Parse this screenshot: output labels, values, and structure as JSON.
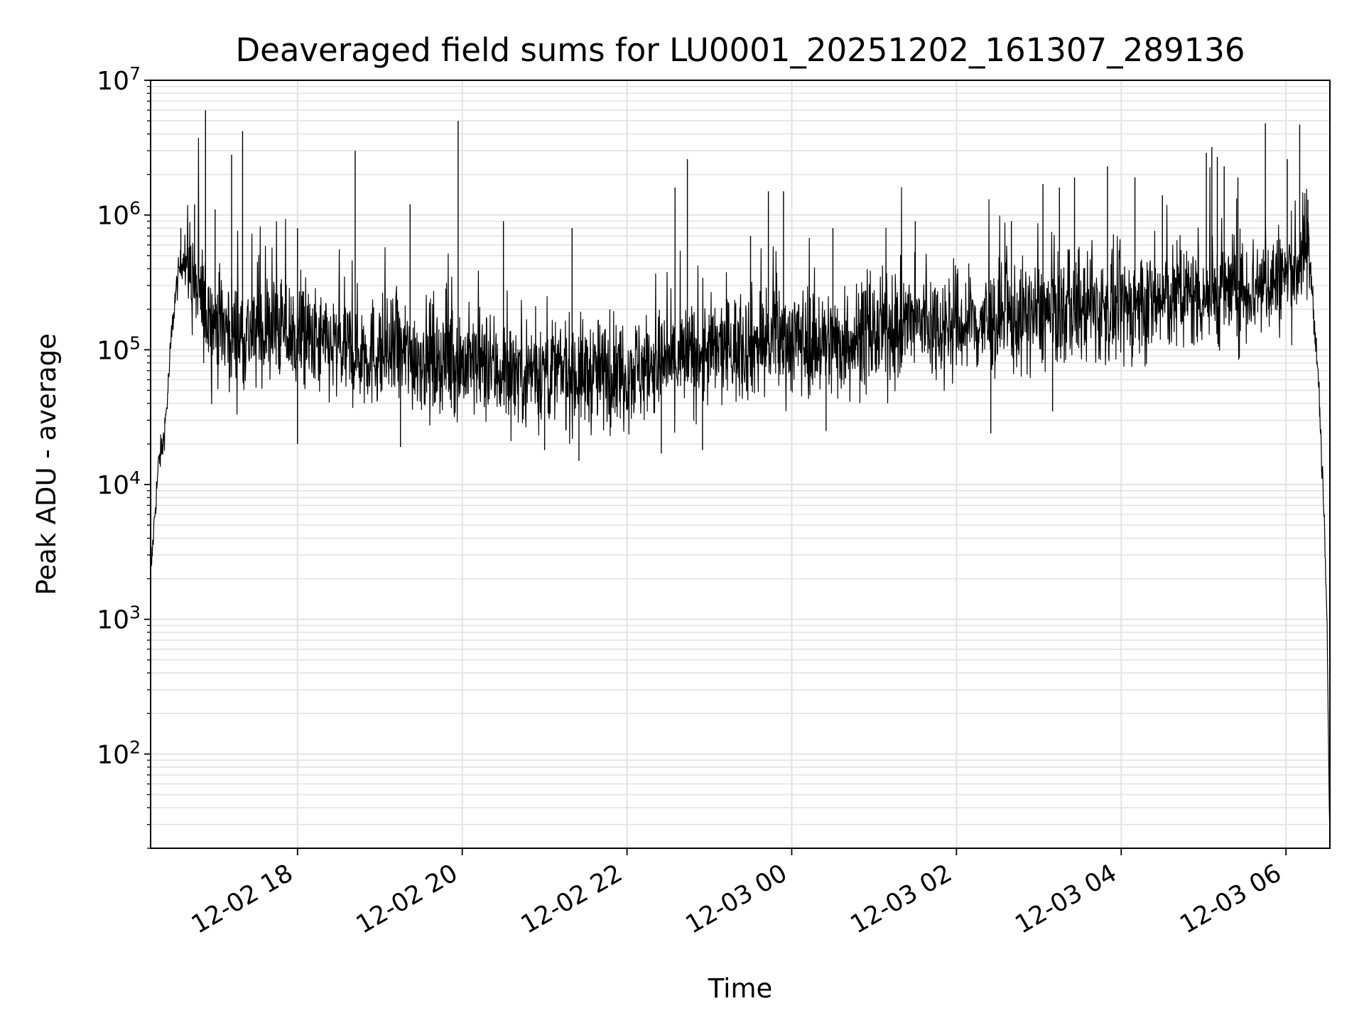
{
  "chart_data": {
    "type": "line",
    "title": "Deaveraged field sums for LU0001_20251202_161307_289136",
    "xlabel": "Time",
    "ylabel": "Peak ADU - average",
    "yscale": "log",
    "ylim": [
      20,
      10000000
    ],
    "xlim": [
      "2025-12-02 16:13",
      "2025-12-03 06:32"
    ],
    "grid": "on (major and minor)",
    "line_color": "#000000",
    "x_ticks": [
      "2025-12-02 18:00",
      "2025-12-02 20:00",
      "2025-12-02 22:00",
      "2025-12-03 00:00",
      "2025-12-03 02:00",
      "2025-12-03 04:00",
      "2025-12-03 06:00"
    ],
    "x_tick_labels": [
      "12-02 18",
      "12-02 20",
      "12-02 22",
      "12-03 00",
      "12-03 02",
      "12-03 04",
      "12-03 06"
    ],
    "y_tick_labels": [
      {
        "base": "10",
        "exp": "2"
      },
      {
        "base": "10",
        "exp": "3"
      },
      {
        "base": "10",
        "exp": "4"
      },
      {
        "base": "10",
        "exp": "5"
      },
      {
        "base": "10",
        "exp": "6"
      },
      {
        "base": "10",
        "exp": "7"
      }
    ],
    "series": [
      {
        "x": [
          "2025-12-02 16:13",
          "2025-12-02 16:16",
          "2025-12-02 16:19",
          "2025-12-02 16:22",
          "2025-12-02 16:25",
          "2025-12-02 16:28",
          "2025-12-02 16:31",
          "2025-12-02 16:34",
          "2025-12-02 16:38",
          "2025-12-02 16:45",
          "2025-12-02 16:55",
          "2025-12-02 17:05",
          "2025-12-02 17:15",
          "2025-12-02 17:30",
          "2025-12-02 17:45",
          "2025-12-02 18:00",
          "2025-12-02 18:30",
          "2025-12-02 19:00",
          "2025-12-02 19:30",
          "2025-12-02 20:00",
          "2025-12-02 20:30",
          "2025-12-02 21:00",
          "2025-12-02 21:30",
          "2025-12-02 22:00",
          "2025-12-02 22:30",
          "2025-12-02 23:00",
          "2025-12-02 23:30",
          "2025-12-03 00:00",
          "2025-12-03 00:30",
          "2025-12-03 01:00",
          "2025-12-03 01:30",
          "2025-12-03 02:00",
          "2025-12-03 02:30",
          "2025-12-03 03:00",
          "2025-12-03 03:30",
          "2025-12-03 04:00",
          "2025-12-03 04:30",
          "2025-12-03 05:00",
          "2025-12-03 05:30",
          "2025-12-03 06:00",
          "2025-12-03 06:10",
          "2025-12-03 06:15",
          "2025-12-03 06:18",
          "2025-12-03 06:21",
          "2025-12-03 06:24",
          "2025-12-03 06:26",
          "2025-12-03 06:28",
          "2025-12-03 06:30",
          "2025-12-03 06:31",
          "2025-12-03 06:32"
        ],
        "y": [
          2000,
          6000,
          15000,
          20000,
          40000,
          120000,
          250000,
          400000,
          500000,
          300000,
          180000,
          150000,
          130000,
          130000,
          150000,
          120000,
          100000,
          95000,
          90000,
          80000,
          70000,
          70000,
          65000,
          70000,
          80000,
          95000,
          110000,
          120000,
          110000,
          130000,
          160000,
          150000,
          160000,
          180000,
          200000,
          200000,
          230000,
          260000,
          280000,
          350000,
          450000,
          600000,
          400000,
          150000,
          50000,
          15000,
          5000,
          800,
          100,
          30
        ]
      }
    ],
    "spikes": [
      {
        "x": "2025-12-02 16:35",
        "y": 800000
      },
      {
        "x": "2025-12-02 16:45",
        "y": 1200000
      },
      {
        "x": "2025-12-02 16:53",
        "y": 6000000
      },
      {
        "x": "2025-12-02 17:00",
        "y": 1100000
      },
      {
        "x": "2025-12-02 17:12",
        "y": 2800000
      },
      {
        "x": "2025-12-02 17:20",
        "y": 4200000
      },
      {
        "x": "2025-12-02 18:00",
        "y": 800000
      },
      {
        "x": "2025-12-02 18:42",
        "y": 3000000
      },
      {
        "x": "2025-12-02 19:22",
        "y": 1200000
      },
      {
        "x": "2025-12-02 19:57",
        "y": 5000000
      },
      {
        "x": "2025-12-02 20:30",
        "y": 900000
      },
      {
        "x": "2025-12-02 21:20",
        "y": 800000
      },
      {
        "x": "2025-12-02 22:35",
        "y": 1600000
      },
      {
        "x": "2025-12-02 22:44",
        "y": 2600000
      },
      {
        "x": "2025-12-02 23:30",
        "y": 700000
      },
      {
        "x": "2025-12-02 23:43",
        "y": 1500000
      },
      {
        "x": "2025-12-02 23:54",
        "y": 1500000
      },
      {
        "x": "2025-12-03 00:30",
        "y": 800000
      },
      {
        "x": "2025-12-03 01:30",
        "y": 900000
      },
      {
        "x": "2025-12-03 02:40",
        "y": 900000
      },
      {
        "x": "2025-12-03 03:03",
        "y": 1700000
      },
      {
        "x": "2025-12-03 03:15",
        "y": 1600000
      },
      {
        "x": "2025-12-03 03:26",
        "y": 1900000
      },
      {
        "x": "2025-12-03 03:50",
        "y": 2300000
      },
      {
        "x": "2025-12-03 04:10",
        "y": 1900000
      },
      {
        "x": "2025-12-03 04:30",
        "y": 1400000
      },
      {
        "x": "2025-12-03 05:02",
        "y": 2900000
      },
      {
        "x": "2025-12-03 05:06",
        "y": 3200000
      },
      {
        "x": "2025-12-03 05:10",
        "y": 2700000
      },
      {
        "x": "2025-12-03 05:15",
        "y": 2300000
      },
      {
        "x": "2025-12-03 05:25",
        "y": 1900000
      },
      {
        "x": "2025-12-03 05:45",
        "y": 4800000
      },
      {
        "x": "2025-12-03 06:01",
        "y": 2600000
      },
      {
        "x": "2025-12-03 06:10",
        "y": 4700000
      },
      {
        "x": "2025-12-03 06:16",
        "y": 1300000
      }
    ],
    "dips": [
      {
        "x": "2025-12-02 18:00",
        "y": 20000
      },
      {
        "x": "2025-12-02 19:15",
        "y": 19000
      },
      {
        "x": "2025-12-02 21:00",
        "y": 18000
      },
      {
        "x": "2025-12-02 21:25",
        "y": 15000
      },
      {
        "x": "2025-12-02 22:25",
        "y": 17000
      },
      {
        "x": "2025-12-02 22:55",
        "y": 18000
      },
      {
        "x": "2025-12-03 00:25",
        "y": 25000
      },
      {
        "x": "2025-12-03 02:25",
        "y": 24000
      },
      {
        "x": "2025-12-03 03:10",
        "y": 35000
      }
    ]
  }
}
